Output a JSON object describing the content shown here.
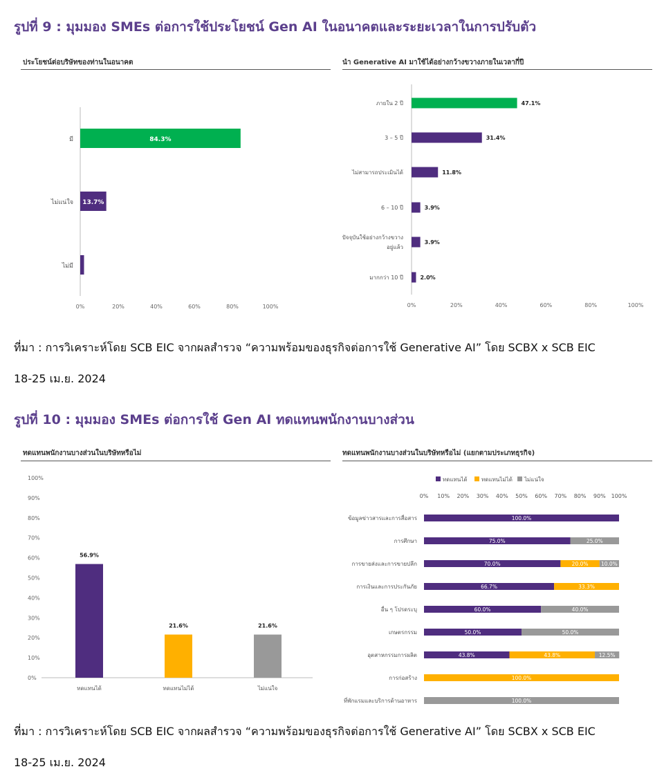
{
  "figure9": {
    "title": "รูปที่ 9 : มุมมอง SMEs ต่อการใช้ประโยชน์ Gen AI ในอนาคตและระยะเวลาในการปรับตัว",
    "source_line1": "ที่มา : การวิเคราะห์โดย SCB EIC จากผลสำรวจ “ความพร้อมของธุรกิจต่อการใช้ Generative AI” โดย SCBX x SCB EIC",
    "source_line2": "18-25 เม.ย. 2024"
  },
  "figure10": {
    "title": "รูปที่ 10 : มุมมอง SMEs ต่อการใช้ Gen AI ทดแทนพนักงานบางส่วน",
    "source_line1": "ที่มา : การวิเคราะห์โดย SCB EIC จากผลสำรวจ “ความพร้อมของธุรกิจต่อการใช้ Generative AI” โดย SCBX x SCB EIC",
    "source_line2": "18-25 เม.ย. 2024"
  },
  "colors": {
    "purple": "#4f2d7f",
    "green": "#00b050",
    "orange": "#ffb000",
    "gray": "#999999"
  },
  "chart_data": [
    {
      "id": "benefit",
      "type": "bar",
      "orientation": "horizontal",
      "title": "ประโยชน์ต่อบริษัทของท่านในอนาคต",
      "categories": [
        "มี",
        "ไม่แน่ใจ",
        "ไม่มี"
      ],
      "values": [
        84.3,
        13.7,
        2.0
      ],
      "labels": [
        "84.3%",
        "13.7%",
        ""
      ],
      "bar_colors": [
        "#00b050",
        "#4f2d7f",
        "#4f2d7f"
      ],
      "xlim": [
        0,
        100
      ],
      "xticks": [
        "0%",
        "20%",
        "40%",
        "60%",
        "80%",
        "100%"
      ]
    },
    {
      "id": "timeframe",
      "type": "bar",
      "orientation": "horizontal",
      "title": "นำ Generative AI มาใช้ได้อย่างกว้างขวางภายในเวลากี่ปี",
      "categories": [
        "ภายใน 2 ปี",
        "3 – 5 ปี",
        "ไม่สามารถประเมินได้",
        "6 – 10 ปี",
        "ปัจจุบันใช้อย่างกว้างขวาง|อยู่แล้ว",
        "มากกว่า 10 ปี"
      ],
      "values": [
        47.1,
        31.4,
        11.8,
        3.9,
        3.9,
        2.0
      ],
      "labels": [
        "47.1%",
        "31.4%",
        "11.8%",
        "3.9%",
        "3.9%",
        "2.0%"
      ],
      "bar_colors": [
        "#00b050",
        "#4f2d7f",
        "#4f2d7f",
        "#4f2d7f",
        "#4f2d7f",
        "#4f2d7f"
      ],
      "xlim": [
        0,
        100
      ],
      "xticks": [
        "0%",
        "20%",
        "40%",
        "60%",
        "80%",
        "100%"
      ]
    },
    {
      "id": "replace",
      "type": "bar",
      "orientation": "vertical",
      "title": "ทดแทนพนักงานบางส่วนในบริษัทหรือไม่",
      "categories": [
        "ทดแทนได้",
        "ทดแทนไม่ได้",
        "ไม่แน่ใจ"
      ],
      "values": [
        56.9,
        21.6,
        21.6
      ],
      "labels": [
        "56.9%",
        "21.6%",
        "21.6%"
      ],
      "bar_colors": [
        "#4f2d7f",
        "#ffb000",
        "#999999"
      ],
      "ylim": [
        0,
        100
      ],
      "yticks": [
        "0%",
        "10%",
        "20%",
        "30%",
        "40%",
        "50%",
        "60%",
        "70%",
        "80%",
        "90%",
        "100%"
      ]
    },
    {
      "id": "replace_by_industry",
      "type": "bar",
      "orientation": "horizontal-stacked",
      "title": "ทดแทนพนักงานบางส่วนในบริษัทหรือไม่ (แยกตามประเภทธุรกิจ)",
      "categories": [
        "ข้อมูลข่าวสารและการสื่อสาร",
        "การศึกษา",
        "การขายส่งและการขายปลีก",
        "การเงินและการประกันภัย",
        "อื่น ๆ โปรดระบุ",
        "เกษตรกรรม",
        "อุตสาหกรรมการผลิต",
        "การก่อสร้าง",
        "ที่พักแรมและบริการด้านอาหาร"
      ],
      "series": [
        {
          "name": "ทดแทนได้",
          "color": "#4f2d7f",
          "values": [
            100.0,
            75.0,
            70.0,
            66.7,
            60.0,
            50.0,
            43.8,
            0,
            0
          ]
        },
        {
          "name": "ทดแทนไม่ได้",
          "color": "#ffb000",
          "values": [
            0,
            0,
            20.0,
            33.3,
            0,
            0,
            43.8,
            100.0,
            0
          ]
        },
        {
          "name": "ไม่แน่ใจ",
          "color": "#999999",
          "values": [
            0,
            25.0,
            10.0,
            0,
            40.0,
            50.0,
            12.5,
            0,
            100.0
          ]
        }
      ],
      "xlim": [
        0,
        100
      ],
      "xticks": [
        "0%",
        "10%",
        "20%",
        "30%",
        "40%",
        "50%",
        "60%",
        "70%",
        "80%",
        "90%",
        "100%"
      ],
      "legend": "top"
    }
  ]
}
